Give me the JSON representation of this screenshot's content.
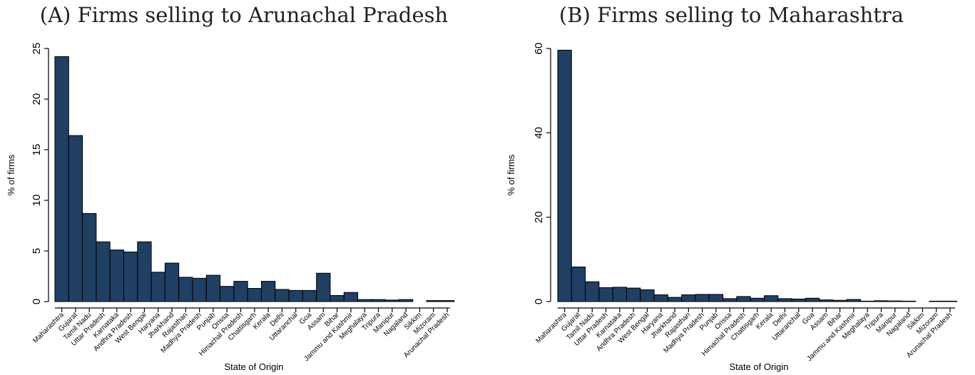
{
  "charts": [
    {
      "panel_title": "(A) Firms selling to Arunachal Pradesh"
    },
    {
      "panel_title": "(B) Firms selling to Maharashtra"
    }
  ],
  "chart_data": [
    {
      "type": "bar",
      "title": "(A) Firms selling to Arunachal Pradesh",
      "xlabel": "State of Origin",
      "ylabel": "% of firms",
      "ylim": [
        0,
        25
      ],
      "yticks": [
        0,
        5,
        10,
        15,
        20,
        25
      ],
      "grid": false,
      "bar_color": "#1f3f63",
      "categories": [
        "Maharashtra",
        "Gujarat",
        "Tamil Nadu",
        "Uttar Pradesh",
        "Karnataka",
        "Andhra Pradesh",
        "West Bengal",
        "Haryana",
        "Jharkhand",
        "Rajasthan",
        "Madhya Pradesh",
        "Punjab",
        "Orissa",
        "Himachal Pradesh",
        "Chattisgarh",
        "Kerala",
        "Delhi",
        "Uttaranchal",
        "Goa",
        "Assam",
        "Bihar",
        "Jammu and Kashmir",
        "Meghalaya",
        "Tripura",
        "Manipur",
        "Nagaland",
        "Sikkim",
        "Mizoram",
        "Arunachal Pradesh"
      ],
      "values": [
        24.2,
        16.4,
        8.7,
        5.9,
        5.1,
        4.9,
        5.9,
        2.9,
        3.8,
        2.4,
        2.3,
        2.6,
        1.5,
        2.0,
        1.3,
        2.0,
        1.2,
        1.1,
        1.1,
        2.8,
        0.6,
        0.9,
        0.2,
        0.2,
        0.15,
        0.2,
        0.0,
        0.1,
        0.1
      ]
    },
    {
      "type": "bar",
      "title": "(B) Firms selling to Maharashtra",
      "xlabel": "State of Origin",
      "ylabel": "% of firms",
      "ylim": [
        0,
        60
      ],
      "yticks": [
        0,
        20,
        40,
        60
      ],
      "grid": false,
      "bar_color": "#1f3f63",
      "categories": [
        "Maharashtra",
        "Gujarat",
        "Tamil Nadu",
        "Uttar Pradesh",
        "Karnataka",
        "Andhra Pradesh",
        "West Bengal",
        "Haryana",
        "Jharkhand",
        "Rajasthan",
        "Madhya Pradesh",
        "Punjab",
        "Orissa",
        "Himachal Pradesh",
        "Chattisgarh",
        "Kerala",
        "Delhi",
        "Uttaranchal",
        "Goa",
        "Assam",
        "Bihar",
        "Jammu and Kashmir",
        "Meghalaya",
        "Tripura",
        "Manipur",
        "Nagaland",
        "Sikkim",
        "Mizoram",
        "Arunachal Pradesh"
      ],
      "values": [
        59.6,
        8.2,
        4.7,
        3.3,
        3.4,
        3.2,
        2.8,
        1.6,
        1.0,
        1.6,
        1.7,
        1.7,
        0.7,
        1.2,
        0.8,
        1.4,
        0.7,
        0.6,
        0.8,
        0.4,
        0.3,
        0.5,
        0.1,
        0.2,
        0.15,
        0.1,
        0.0,
        0.1,
        0.1
      ]
    }
  ]
}
